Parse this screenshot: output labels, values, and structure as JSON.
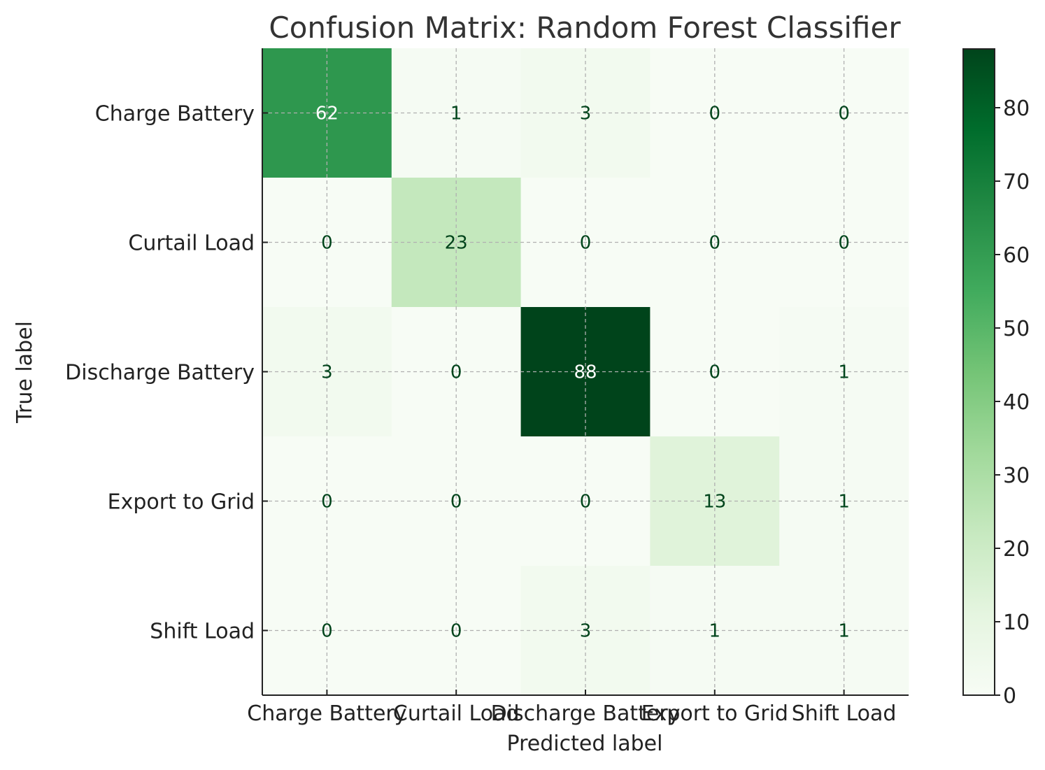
{
  "chart_data": {
    "type": "heatmap",
    "title": "Confusion Matrix: Random Forest Classifier",
    "xlabel": "Predicted label",
    "ylabel": "True label",
    "x_categories": [
      "Charge Battery",
      "Curtail Load",
      "Discharge Battery",
      "Export to Grid",
      "Shift Load"
    ],
    "y_categories": [
      "Charge Battery",
      "Curtail Load",
      "Discharge Battery",
      "Export to Grid",
      "Shift Load"
    ],
    "values": [
      [
        62,
        1,
        3,
        0,
        0
      ],
      [
        0,
        23,
        0,
        0,
        0
      ],
      [
        3,
        0,
        88,
        0,
        1
      ],
      [
        0,
        0,
        0,
        13,
        1
      ],
      [
        0,
        0,
        3,
        1,
        1
      ]
    ],
    "colorbar": {
      "range": [
        0,
        88
      ],
      "ticks": [
        0,
        10,
        20,
        30,
        40,
        50,
        60,
        70,
        80
      ]
    },
    "colormap": "Greens",
    "grid": true
  }
}
